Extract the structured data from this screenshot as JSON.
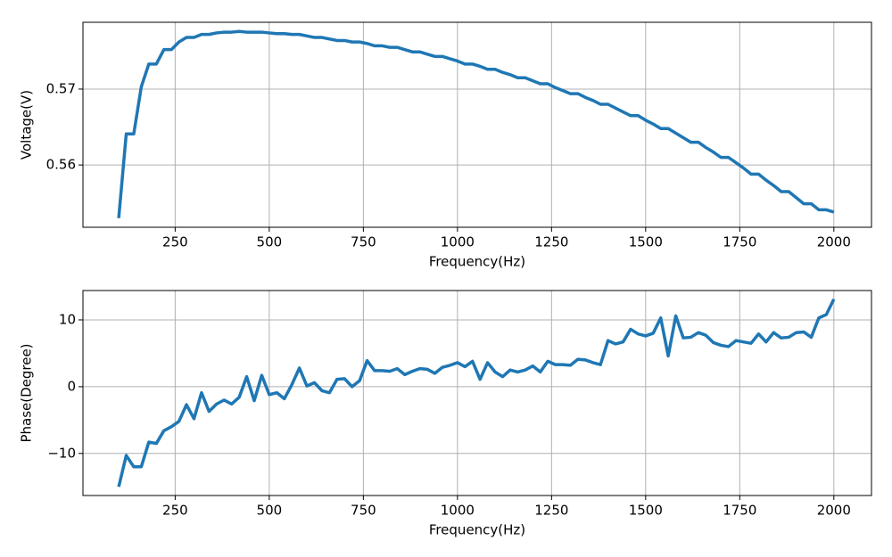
{
  "chart_data": [
    {
      "type": "line",
      "x_label": "Frequency(Hz)",
      "y_label": "Voltage(V)",
      "x": [
        100,
        120,
        140,
        160,
        180,
        200,
        220,
        240,
        260,
        280,
        300,
        320,
        340,
        360,
        380,
        400,
        420,
        440,
        460,
        480,
        500,
        520,
        540,
        560,
        580,
        600,
        620,
        640,
        660,
        680,
        700,
        720,
        740,
        760,
        780,
        800,
        820,
        840,
        860,
        880,
        900,
        920,
        940,
        960,
        980,
        1000,
        1020,
        1040,
        1060,
        1080,
        1100,
        1120,
        1140,
        1160,
        1180,
        1200,
        1220,
        1240,
        1260,
        1280,
        1300,
        1320,
        1340,
        1360,
        1380,
        1400,
        1420,
        1440,
        1460,
        1480,
        1500,
        1520,
        1540,
        1560,
        1580,
        1600,
        1620,
        1640,
        1660,
        1680,
        1700,
        1720,
        1740,
        1760,
        1780,
        1800,
        1820,
        1840,
        1860,
        1880,
        1900,
        1920,
        1940,
        1960,
        1980,
        2000
      ],
      "values": [
        0.553,
        0.5641,
        0.5641,
        0.5703,
        0.5733,
        0.5733,
        0.5752,
        0.5752,
        0.5762,
        0.5768,
        0.5768,
        0.5772,
        0.5772,
        0.5774,
        0.5775,
        0.5775,
        0.5776,
        0.5775,
        0.5775,
        0.5775,
        0.5774,
        0.5773,
        0.5773,
        0.5772,
        0.5772,
        0.577,
        0.5768,
        0.5768,
        0.5766,
        0.5764,
        0.5764,
        0.5762,
        0.5762,
        0.576,
        0.5757,
        0.5757,
        0.5755,
        0.5755,
        0.5752,
        0.5749,
        0.5749,
        0.5746,
        0.5743,
        0.5743,
        0.574,
        0.5737,
        0.5733,
        0.5733,
        0.573,
        0.5726,
        0.5726,
        0.5722,
        0.5719,
        0.5715,
        0.5715,
        0.5711,
        0.5707,
        0.5707,
        0.5702,
        0.5698,
        0.5694,
        0.5694,
        0.5689,
        0.5685,
        0.568,
        0.568,
        0.5675,
        0.567,
        0.5665,
        0.5665,
        0.5659,
        0.5654,
        0.5648,
        0.5648,
        0.5642,
        0.5636,
        0.563,
        0.563,
        0.5623,
        0.5617,
        0.561,
        0.561,
        0.5603,
        0.5596,
        0.5588,
        0.5588,
        0.558,
        0.5573,
        0.5565,
        0.5565,
        0.5557,
        0.5549,
        0.5549,
        0.5541,
        0.5541,
        0.5538
      ],
      "color": "#1f77b4",
      "grid": true,
      "xlim": [
        5,
        2100
      ],
      "xticks": [
        250,
        500,
        750,
        1000,
        1250,
        1500,
        1750,
        2000
      ],
      "ylim": [
        0.5518,
        0.5788
      ],
      "yticks": [
        0.56,
        0.57
      ]
    },
    {
      "type": "line",
      "x_label": "Frequency(Hz)",
      "y_label": "Phase(Degree)",
      "x": [
        100,
        120,
        140,
        160,
        180,
        200,
        220,
        240,
        260,
        280,
        300,
        320,
        340,
        360,
        380,
        400,
        420,
        440,
        460,
        480,
        500,
        520,
        540,
        560,
        580,
        600,
        620,
        640,
        660,
        680,
        700,
        720,
        740,
        760,
        780,
        800,
        820,
        840,
        860,
        880,
        900,
        920,
        940,
        960,
        980,
        1000,
        1020,
        1040,
        1060,
        1080,
        1100,
        1120,
        1140,
        1160,
        1180,
        1200,
        1220,
        1240,
        1260,
        1280,
        1300,
        1320,
        1340,
        1360,
        1380,
        1400,
        1420,
        1440,
        1460,
        1480,
        1500,
        1520,
        1540,
        1560,
        1580,
        1600,
        1620,
        1640,
        1660,
        1680,
        1700,
        1720,
        1740,
        1760,
        1780,
        1800,
        1820,
        1840,
        1860,
        1880,
        1900,
        1920,
        1940,
        1960,
        1980,
        2000
      ],
      "values": [
        -15,
        -10.3,
        -12,
        -12,
        -8.3,
        -8.5,
        -6.6,
        -6,
        -5.2,
        -2.7,
        -4.8,
        -0.9,
        -3.7,
        -2.6,
        -2,
        -2.6,
        -1.6,
        1.5,
        -2.1,
        1.7,
        -1.2,
        -0.9,
        -1.8,
        0.3,
        2.8,
        0.1,
        0.6,
        -0.6,
        -0.9,
        1.1,
        1.2,
        0,
        0.9,
        3.9,
        2.4,
        2.4,
        2.3,
        2.7,
        1.8,
        2.3,
        2.7,
        2.6,
        2,
        2.9,
        3.2,
        3.6,
        3,
        3.8,
        1.1,
        3.6,
        2.2,
        1.5,
        2.5,
        2.2,
        2.5,
        3.1,
        2.2,
        3.8,
        3.3,
        3.3,
        3.2,
        4.1,
        4.0,
        3.6,
        3.3,
        6.9,
        6.4,
        6.7,
        8.6,
        7.9,
        7.6,
        8.0,
        10.3,
        4.6,
        10.6,
        7.3,
        7.4,
        8.1,
        7.7,
        6.6,
        6.2,
        6.0,
        6.9,
        6.7,
        6.5,
        7.9,
        6.7,
        8.1,
        7.3,
        7.4,
        8.1,
        8.2,
        7.4,
        10.3,
        10.8,
        13.1
      ],
      "color": "#1f77b4",
      "grid": true,
      "xlim": [
        5,
        2100
      ],
      "xticks": [
        250,
        500,
        750,
        1000,
        1250,
        1500,
        1750,
        2000
      ],
      "ylim": [
        -16.3,
        14.4
      ],
      "yticks": [
        {
          "value": -10,
          "label": "−10"
        },
        0,
        10
      ]
    }
  ]
}
